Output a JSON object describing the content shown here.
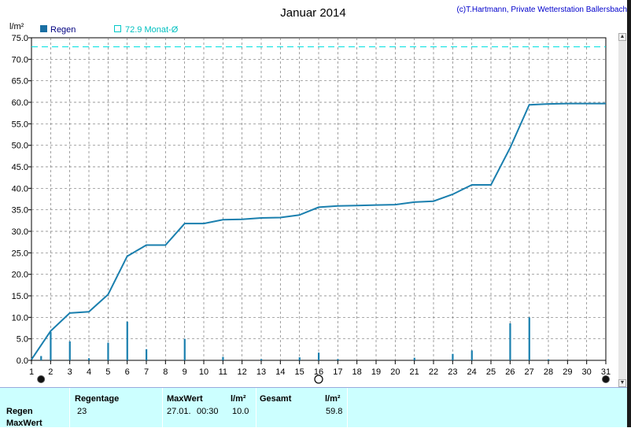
{
  "chart_data": {
    "type": "line",
    "title": "Januar 2014",
    "copyright": "(c)T.Hartmann, Private Wetterstation Ballersbach",
    "ylabel": "l/m²",
    "ylim": [
      0,
      75
    ],
    "yticks": [
      "0.0",
      "5.0",
      "10.0",
      "15.0",
      "20.0",
      "25.0",
      "30.0",
      "35.0",
      "40.0",
      "45.0",
      "50.0",
      "55.0",
      "60.0",
      "65.0",
      "70.0",
      "75.0"
    ],
    "xlim": [
      1,
      31
    ],
    "xticks": [
      "1",
      "2",
      "3",
      "4",
      "5",
      "6",
      "7",
      "8",
      "9",
      "10",
      "11",
      "12",
      "13",
      "14",
      "15",
      "16",
      "17",
      "18",
      "19",
      "20",
      "21",
      "22",
      "23",
      "24",
      "25",
      "26",
      "27",
      "28",
      "29",
      "30",
      "31"
    ],
    "grid": true,
    "legend": [
      {
        "name": "Regen",
        "color": "#1a6fa3"
      },
      {
        "name": "72.9 Monat-Ø",
        "color": "#00e0e0"
      }
    ],
    "monthly_average": 72.9,
    "line_color": "#1a7fae",
    "bar_color": "#1a7fae",
    "cumulative": [
      [
        1,
        0.2
      ],
      [
        2,
        6.8
      ],
      [
        3,
        11.0
      ],
      [
        4,
        11.3
      ],
      [
        5,
        15.3
      ],
      [
        6,
        24.2
      ],
      [
        7,
        26.8
      ],
      [
        8,
        26.8
      ],
      [
        9,
        31.8
      ],
      [
        10,
        31.8
      ],
      [
        11,
        32.7
      ],
      [
        12,
        32.8
      ],
      [
        13,
        33.1
      ],
      [
        14,
        33.2
      ],
      [
        15,
        33.8
      ],
      [
        16,
        35.6
      ],
      [
        17,
        35.9
      ],
      [
        18,
        36.0
      ],
      [
        19,
        36.1
      ],
      [
        20,
        36.2
      ],
      [
        21,
        36.8
      ],
      [
        22,
        37.0
      ],
      [
        23,
        38.6
      ],
      [
        24,
        40.8
      ],
      [
        25,
        40.8
      ],
      [
        26,
        49.4
      ],
      [
        27,
        59.4
      ],
      [
        28,
        59.6
      ],
      [
        29,
        59.7
      ],
      [
        30,
        59.7
      ],
      [
        31,
        59.7
      ]
    ],
    "daily_bars": [
      [
        1.5,
        1.0
      ],
      [
        2,
        6.6
      ],
      [
        3,
        4.4
      ],
      [
        4,
        0.5
      ],
      [
        5,
        4.1
      ],
      [
        6,
        9.0
      ],
      [
        7,
        2.6
      ],
      [
        9,
        5.0
      ],
      [
        11,
        0.8
      ],
      [
        13,
        0.3
      ],
      [
        15,
        0.7
      ],
      [
        16,
        1.8
      ],
      [
        17,
        0.3
      ],
      [
        21,
        0.6
      ],
      [
        23,
        1.5
      ],
      [
        24,
        2.3
      ],
      [
        26,
        8.6
      ],
      [
        27,
        10.0
      ],
      [
        28,
        0.2
      ]
    ],
    "moon_phases": [
      {
        "day": 1.5,
        "phase": "new"
      },
      {
        "day": 16,
        "phase": "full"
      },
      {
        "day": 31,
        "phase": "new"
      }
    ]
  },
  "stats": {
    "row_labels": [
      "Regen",
      "MaxWert"
    ],
    "regentage_label": "Regentage",
    "regentage_value": "23",
    "maxwert_label": "MaxWert",
    "maxwert_unit_label": "l/m²",
    "maxwert_date": "27.01.",
    "maxwert_time": "00:30",
    "maxwert_value": "10.0",
    "gesamt_label": "Gesamt",
    "gesamt_unit_label": "l/m²",
    "gesamt_value": "59.8"
  }
}
